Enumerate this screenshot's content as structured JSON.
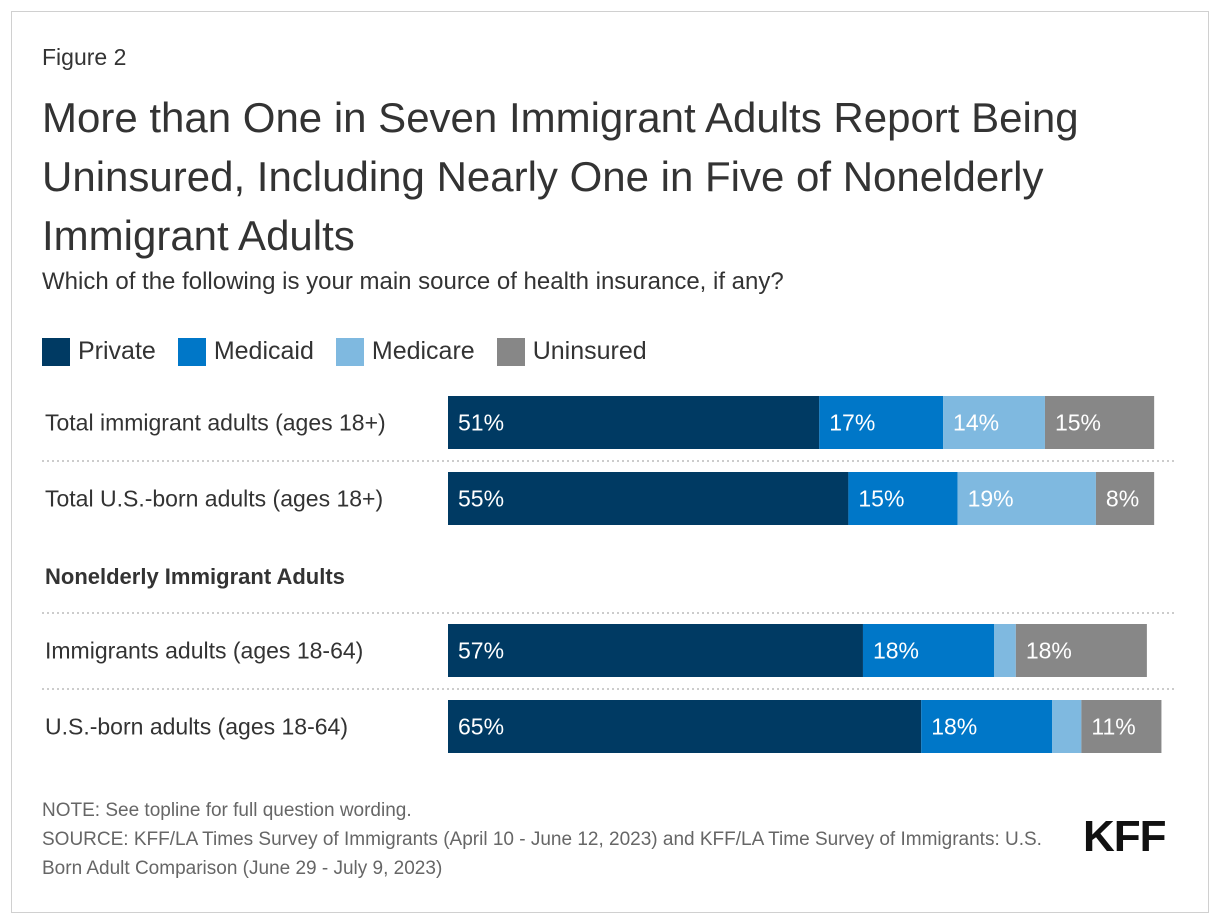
{
  "figure_label": "Figure 2",
  "title": "More than One in Seven Immigrant Adults Report Being Uninsured, Including Nearly One in Five of Nonelderly Immigrant Adults",
  "subtitle": "Which of the following is your main source of health insurance, if any?",
  "chart_data": {
    "type": "bar",
    "orientation": "horizontal",
    "stacked": true,
    "legend_position": "top-left",
    "categories": [
      "Total immigrant adults (ages 18+)",
      "Total U.S.-born adults (ages 18+)",
      "Immigrants adults (ages 18-64)",
      "U.S.-born adults (ages 18-64)"
    ],
    "group_label": "Nonelderly Immigrant Adults",
    "series": [
      {
        "name": "Private",
        "color": "#003a63",
        "values": [
          51,
          55,
          57,
          65
        ]
      },
      {
        "name": "Medicaid",
        "color": "#0077c8",
        "values": [
          17,
          15,
          18,
          18
        ]
      },
      {
        "name": "Medicare",
        "color": "#7fb9e0",
        "values": [
          14,
          19,
          3,
          4
        ]
      },
      {
        "name": "Uninsured",
        "color": "#878787",
        "values": [
          15,
          8,
          18,
          11
        ]
      }
    ],
    "data_label_format": "{v}%",
    "xlim": [
      0,
      100
    ]
  },
  "note": "NOTE: See topline for full question wording.",
  "source": "SOURCE: KFF/LA Times Survey of Immigrants (April 10 - June 12, 2023) and KFF/LA Time Survey of Immigrants: U.S. Born Adult Comparison (June 29 - July 9, 2023)",
  "logo": "KFF"
}
